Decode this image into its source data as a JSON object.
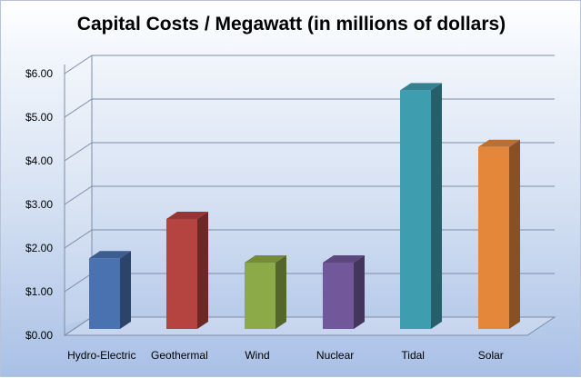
{
  "chart_data": {
    "type": "bar",
    "title": "Capital Costs / Megawatt (in millions of dollars)",
    "categories": [
      "Hydro-Electric",
      "Geothermal",
      "Wind",
      "Nuclear",
      "Tidal",
      "Solar"
    ],
    "values": [
      1.6,
      2.5,
      1.5,
      1.5,
      5.45,
      4.15
    ],
    "yticks": [
      "$0.00",
      "$1.00",
      "$2.00",
      "$3.00",
      "$4.00",
      "$5.00",
      "$6.00"
    ],
    "ylim": [
      0,
      6
    ],
    "grid": true,
    "legend": "none",
    "colors": [
      "#4a72b0",
      "#b5433f",
      "#8caa48",
      "#71589a",
      "#3f9db0",
      "#e4873a"
    ]
  }
}
